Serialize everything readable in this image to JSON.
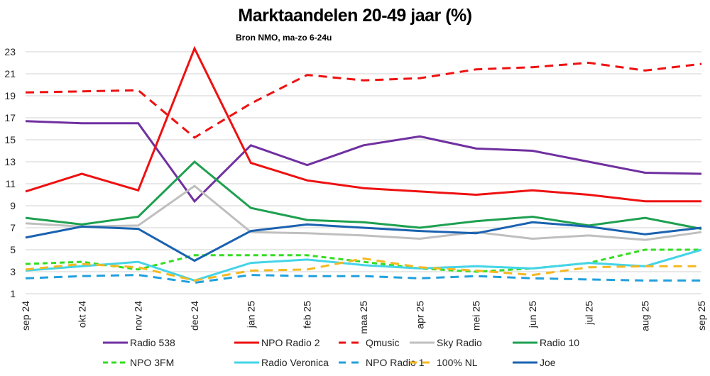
{
  "chart_data": {
    "type": "line",
    "title": "Marktaandelen 20-49 jaar (%)",
    "subtitle": "Bron NMO, ma-zo 6-24u",
    "xlabel": "",
    "ylabel": "",
    "ylim": [
      1,
      23
    ],
    "yticks": [
      1,
      3,
      5,
      7,
      9,
      11,
      13,
      15,
      17,
      19,
      21,
      23
    ],
    "grid": true,
    "legend_position": "bottom",
    "categories": [
      "sep 24",
      "okt 24",
      "nov 24",
      "dec 24",
      "jan 25",
      "feb 25",
      "maa 25",
      "apr 25",
      "mei 25",
      "jun 25",
      "jul 25",
      "aug 25",
      "sep 25"
    ],
    "series": [
      {
        "name": "Radio 538",
        "color": "#7030A0",
        "style": "solid",
        "values": [
          16.7,
          16.5,
          16.5,
          9.4,
          14.5,
          12.7,
          14.5,
          15.3,
          14.2,
          14.0,
          13.0,
          12.0,
          11.9
        ]
      },
      {
        "name": "NPO Radio 2",
        "color": "#EE1111",
        "style": "solid",
        "values": [
          10.3,
          11.9,
          10.4,
          23.3,
          12.9,
          11.3,
          10.6,
          10.3,
          10.0,
          10.4,
          10.0,
          9.4,
          9.4
        ]
      },
      {
        "name": "Qmusic",
        "color": "#EE1111",
        "style": "dash",
        "values": [
          19.3,
          19.4,
          19.5,
          15.2,
          18.3,
          20.9,
          20.4,
          20.6,
          21.4,
          21.6,
          22.0,
          21.3,
          21.9
        ]
      },
      {
        "name": "Sky Radio",
        "color": "#BFBFBF",
        "style": "solid",
        "values": [
          7.4,
          7.1,
          7.2,
          10.8,
          6.6,
          6.5,
          6.3,
          6.0,
          6.6,
          6.0,
          6.3,
          5.9,
          6.6
        ]
      },
      {
        "name": "Radio 10",
        "color": "#1EA050",
        "style": "solid",
        "values": [
          7.9,
          7.3,
          8.0,
          13.0,
          8.8,
          7.7,
          7.5,
          7.0,
          7.6,
          8.0,
          7.2,
          7.9,
          6.9
        ]
      },
      {
        "name": "NPO 3FM",
        "color": "#33DD22",
        "style": "dot",
        "values": [
          3.7,
          3.9,
          3.2,
          4.5,
          4.5,
          4.5,
          3.9,
          3.3,
          3.0,
          3.3,
          3.8,
          5.0,
          5.0
        ]
      },
      {
        "name": "Radio Veronica",
        "color": "#44D4E8",
        "style": "solid",
        "values": [
          3.1,
          3.5,
          3.9,
          2.2,
          3.8,
          4.1,
          3.6,
          3.3,
          3.5,
          3.3,
          3.8,
          3.5,
          5.0
        ]
      },
      {
        "name": "NPO Radio 1",
        "color": "#22A0DD",
        "style": "dash",
        "values": [
          2.4,
          2.6,
          2.7,
          2.0,
          2.7,
          2.6,
          2.6,
          2.4,
          2.6,
          2.4,
          2.3,
          2.2,
          2.2
        ]
      },
      {
        "name": "100% NL",
        "color": "#F5B820",
        "style": "dash",
        "values": [
          3.2,
          3.7,
          3.4,
          2.2,
          3.1,
          3.2,
          4.2,
          3.4,
          3.1,
          2.7,
          3.4,
          3.5,
          3.5
        ]
      },
      {
        "name": "Joe",
        "color": "#1A62B0",
        "style": "solid",
        "values": [
          6.1,
          7.1,
          6.9,
          4.0,
          6.7,
          7.3,
          7.0,
          6.7,
          6.5,
          7.5,
          7.1,
          6.4,
          7.0
        ]
      }
    ]
  }
}
